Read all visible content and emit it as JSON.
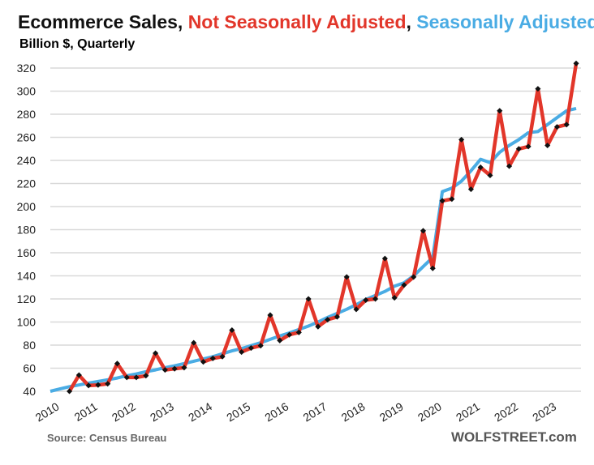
{
  "chart_data": {
    "type": "line",
    "title_parts": [
      {
        "text": "Ecommerce Sales, ",
        "color": "#111111"
      },
      {
        "text": "Not Seasonally Adjusted",
        "color": "#e2362a"
      },
      {
        "text": ", ",
        "color": "#111111"
      },
      {
        "text": "Seasonally Adjusted",
        "color": "#4aace4"
      }
    ],
    "subtitle": "Billion $, Quarterly",
    "source": "Source: Census Bureau",
    "brand": "WOLFSTREET.com",
    "ylim": [
      40,
      320
    ],
    "yticks": [
      40,
      60,
      80,
      100,
      120,
      140,
      160,
      180,
      200,
      220,
      240,
      260,
      280,
      300,
      320
    ],
    "xlabels": [
      "2010",
      "2011",
      "2012",
      "2013",
      "2014",
      "2015",
      "2016",
      "2017",
      "2018",
      "2019",
      "2020",
      "2021",
      "2022",
      "2023"
    ],
    "grid": true,
    "series": [
      {
        "name": "Seasonally Adjusted",
        "color": "#4aace4",
        "values": [
          40,
          42,
          44,
          45.5,
          47,
          48.5,
          50,
          51.5,
          53.5,
          55,
          57,
          58.5,
          60.5,
          62,
          64,
          66,
          68,
          70,
          72.5,
          75,
          77,
          79.5,
          82,
          85,
          88,
          90.5,
          93.5,
          96.5,
          100,
          104,
          107.5,
          111,
          115,
          119.5,
          123,
          126.5,
          131,
          134,
          140,
          148,
          156,
          213,
          216,
          222,
          231,
          241,
          238,
          247,
          253,
          258,
          264,
          265,
          271,
          277,
          283,
          285
        ]
      },
      {
        "name": "Not Seasonally Adjusted",
        "color": "#e2362a",
        "values": [
          null,
          null,
          40,
          54,
          45,
          45.5,
          46.5,
          64,
          52,
          52,
          53.5,
          73,
          58.5,
          59.5,
          60.5,
          82,
          65.5,
          68.5,
          70,
          93,
          74,
          77.5,
          79.5,
          106,
          84,
          89,
          91,
          120,
          96,
          102,
          104.5,
          139,
          111,
          119,
          120,
          155,
          121,
          132,
          139,
          179,
          146.5,
          205,
          206.5,
          258,
          215,
          234,
          227,
          283,
          235,
          250,
          252,
          302,
          253,
          269,
          271,
          324
        ]
      }
    ]
  }
}
